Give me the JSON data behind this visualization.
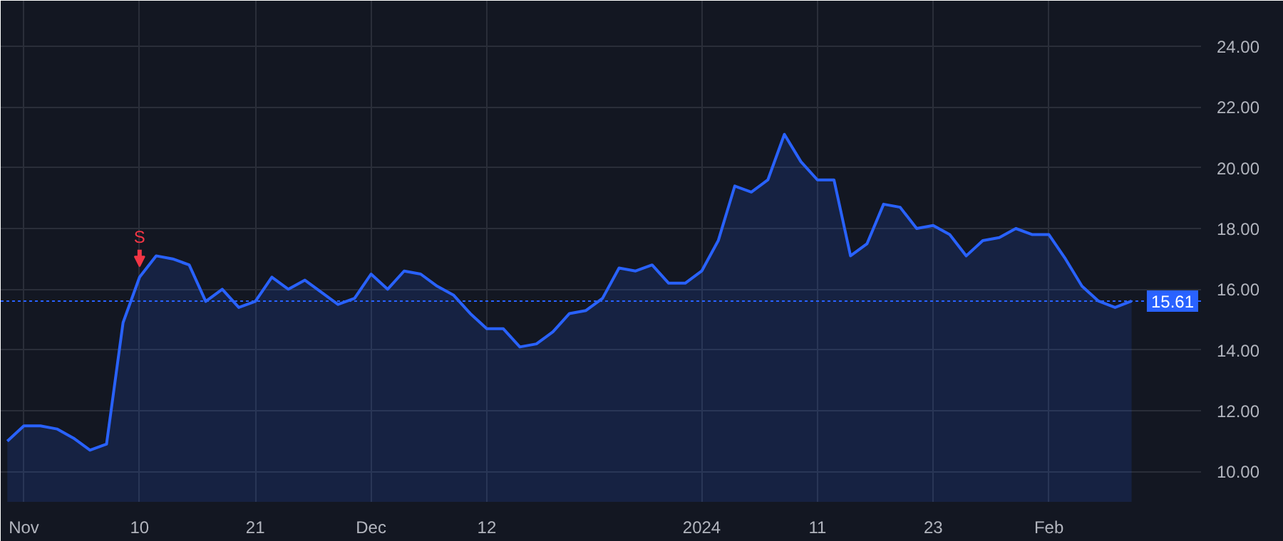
{
  "chart_data": {
    "type": "area",
    "categories": [
      null,
      "Nov",
      null,
      null,
      null,
      null,
      null,
      null,
      "10",
      null,
      null,
      null,
      null,
      null,
      null,
      "21",
      null,
      null,
      null,
      null,
      null,
      null,
      "Dec",
      null,
      null,
      null,
      null,
      null,
      null,
      "12",
      null,
      null,
      null,
      null,
      null,
      null,
      null,
      null,
      null,
      null,
      null,
      null,
      "2024",
      null,
      null,
      null,
      null,
      null,
      null,
      "11",
      null,
      null,
      null,
      null,
      null,
      null,
      "23",
      null,
      null,
      null,
      null,
      null,
      null,
      "Feb",
      null,
      null,
      null,
      null,
      null
    ],
    "series": [
      {
        "color": "#2962ff",
        "values": [
          11.0,
          11.5,
          11.5,
          11.4,
          11.1,
          10.7,
          10.9,
          14.9,
          16.4,
          17.1,
          17.0,
          16.8,
          15.6,
          16.0,
          15.4,
          15.6,
          16.4,
          16.0,
          16.3,
          15.9,
          15.5,
          15.7,
          16.5,
          16.0,
          16.6,
          16.5,
          16.1,
          15.8,
          15.2,
          14.7,
          14.7,
          14.1,
          14.2,
          14.6,
          15.2,
          15.3,
          15.7,
          16.7,
          16.6,
          16.8,
          16.2,
          16.2,
          16.6,
          17.6,
          19.4,
          19.2,
          19.6,
          21.1,
          20.2,
          19.6,
          19.6,
          17.1,
          17.5,
          18.8,
          18.7,
          18.0,
          18.1,
          17.8,
          17.1,
          17.6,
          17.7,
          18.0,
          17.8,
          17.8,
          17.0,
          16.1,
          15.61,
          15.4,
          15.61
        ]
      }
    ],
    "ylim": [
      9.0,
      25.5
    ],
    "yticks": [
      {
        "value": 10,
        "label": "10.00"
      },
      {
        "value": 12,
        "label": "12.00"
      },
      {
        "value": 14,
        "label": "14.00"
      },
      {
        "value": 16,
        "label": "16.00"
      },
      {
        "value": 18,
        "label": "18.00"
      },
      {
        "value": 20,
        "label": "20.00"
      },
      {
        "value": 22,
        "label": "22.00"
      },
      {
        "value": 24,
        "label": "24.00"
      }
    ],
    "grid": true,
    "ref_lines": [
      {
        "axis": "y",
        "value": 15.61,
        "label": "15.61",
        "color": "#2962ff",
        "line_style": "dotted"
      }
    ],
    "annotations": [
      {
        "text": "S",
        "x": "10",
        "y": 16.4
      }
    ]
  }
}
